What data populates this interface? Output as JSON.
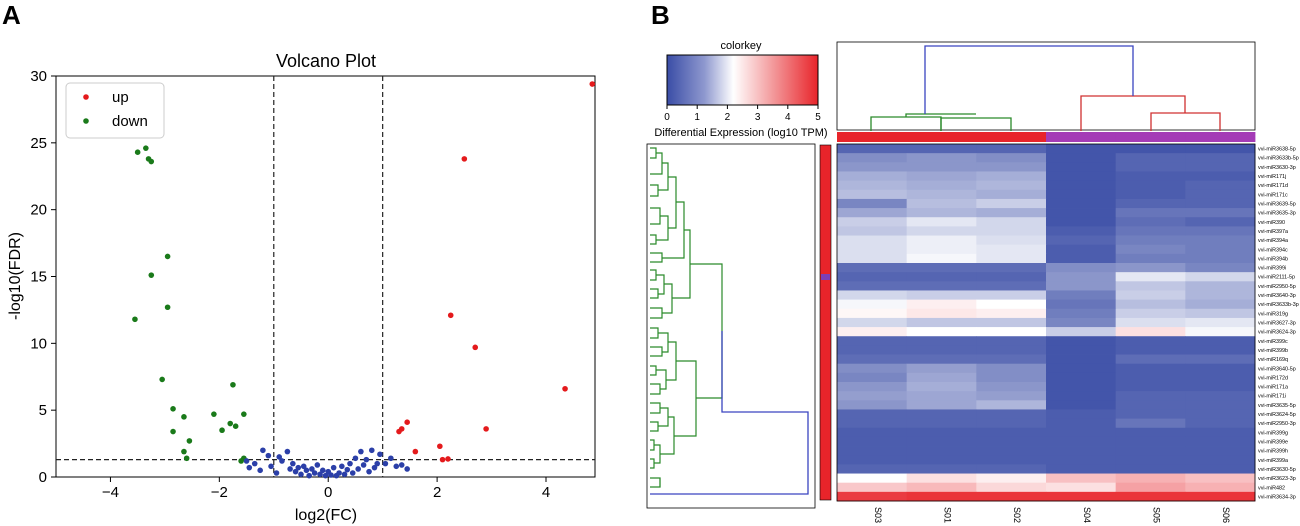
{
  "panels": {
    "a": "A",
    "b": "B"
  },
  "chart_data": [
    {
      "type": "scatter",
      "title": "Volcano Plot",
      "xlabel": "log2(FC)",
      "ylabel": "-log10(FDR)",
      "xlim": [
        -5,
        4.9
      ],
      "ylim": [
        0,
        30
      ],
      "xticks": [
        -4,
        -2,
        0,
        2,
        4
      ],
      "yticks": [
        0,
        5,
        10,
        15,
        20,
        25,
        30
      ],
      "thresholds": {
        "fc": [
          -1,
          1
        ],
        "fdr": 1.3
      },
      "legend": {
        "position": "top-left",
        "entries": [
          "up",
          "down"
        ]
      },
      "colors": {
        "up": "#e41a1c",
        "down": "#1a7a1a",
        "ns": "#2b3fa8"
      },
      "series": [
        {
          "name": "up",
          "points": [
            [
              4.85,
              29.4
            ],
            [
              2.5,
              23.8
            ],
            [
              2.25,
              12.1
            ],
            [
              2.7,
              9.7
            ],
            [
              4.35,
              6.6
            ],
            [
              1.45,
              4.1
            ],
            [
              1.35,
              3.6
            ],
            [
              1.3,
              3.4
            ],
            [
              2.9,
              3.6
            ],
            [
              1.6,
              1.9
            ],
            [
              2.05,
              2.3
            ],
            [
              2.1,
              1.3
            ],
            [
              2.2,
              1.35
            ]
          ]
        },
        {
          "name": "down",
          "points": [
            [
              -3.35,
              24.6
            ],
            [
              -3.5,
              24.3
            ],
            [
              -3.3,
              23.8
            ],
            [
              -3.25,
              23.6
            ],
            [
              -2.95,
              16.5
            ],
            [
              -3.25,
              15.1
            ],
            [
              -2.95,
              12.7
            ],
            [
              -3.55,
              11.8
            ],
            [
              -3.05,
              7.3
            ],
            [
              -2.85,
              5.1
            ],
            [
              -2.65,
              4.5
            ],
            [
              -2.85,
              3.4
            ],
            [
              -2.55,
              2.7
            ],
            [
              -2.65,
              1.9
            ],
            [
              -2.6,
              1.4
            ],
            [
              -2.1,
              4.7
            ],
            [
              -1.75,
              6.9
            ],
            [
              -1.95,
              3.5
            ],
            [
              -1.8,
              4.0
            ],
            [
              -1.55,
              4.7
            ],
            [
              -1.7,
              3.8
            ],
            [
              -1.55,
              1.4
            ],
            [
              -1.6,
              1.2
            ]
          ]
        },
        {
          "name": "ns",
          "points": [
            [
              -1.5,
              1.2
            ],
            [
              -1.35,
              1.0
            ],
            [
              -1.2,
              2.0
            ],
            [
              -1.1,
              1.6
            ],
            [
              -1.05,
              0.8
            ],
            [
              -0.95,
              0.3
            ],
            [
              -0.85,
              1.2
            ],
            [
              -0.75,
              1.9
            ],
            [
              -0.7,
              0.6
            ],
            [
              -0.65,
              1.0
            ],
            [
              -0.6,
              0.4
            ],
            [
              -0.55,
              0.7
            ],
            [
              -0.5,
              0.2
            ],
            [
              -0.45,
              0.8
            ],
            [
              -0.4,
              0.5
            ],
            [
              -0.35,
              0.1
            ],
            [
              -0.3,
              0.6
            ],
            [
              -0.25,
              0.3
            ],
            [
              -0.2,
              0.9
            ],
            [
              -0.15,
              0.2
            ],
            [
              -0.1,
              0.5
            ],
            [
              -0.05,
              0.1
            ],
            [
              0.0,
              0.4
            ],
            [
              0.05,
              0.15
            ],
            [
              0.1,
              0.7
            ],
            [
              0.15,
              0.1
            ],
            [
              0.2,
              0.3
            ],
            [
              0.25,
              0.8
            ],
            [
              0.3,
              0.2
            ],
            [
              0.35,
              0.55
            ],
            [
              0.4,
              1.0
            ],
            [
              0.45,
              0.3
            ],
            [
              0.5,
              1.4
            ],
            [
              0.55,
              0.6
            ],
            [
              0.6,
              1.9
            ],
            [
              0.65,
              0.9
            ],
            [
              0.7,
              1.3
            ],
            [
              0.75,
              0.4
            ],
            [
              0.8,
              2.0
            ],
            [
              0.85,
              0.7
            ],
            [
              0.9,
              1.0
            ],
            [
              0.95,
              1.7
            ],
            [
              1.05,
              1.0
            ],
            [
              1.15,
              1.4
            ],
            [
              1.25,
              0.8
            ],
            [
              1.35,
              0.9
            ],
            [
              1.45,
              0.6
            ],
            [
              -1.25,
              0.5
            ],
            [
              -1.45,
              0.7
            ],
            [
              -0.9,
              1.5
            ]
          ]
        }
      ]
    },
    {
      "type": "heatmap",
      "colorkey": {
        "title": "colorkey",
        "label": "Differential Expression (log10 TPM)",
        "range": [
          0,
          5
        ],
        "ticks": [
          0,
          1,
          2,
          3,
          4,
          5
        ],
        "colors": [
          "#3a4da6",
          "#ffffff",
          "#e8242a"
        ]
      },
      "columns": [
        "S03",
        "S01",
        "S02",
        "S04",
        "S05",
        "S06"
      ],
      "column_groups": [
        "#e8242a",
        "#e8242a",
        "#e8242a",
        "#a43bb6",
        "#a43bb6",
        "#a43bb6"
      ],
      "rows": [
        "vvi-miR3638-5p",
        "vvi-miR3633b-5p",
        "vvi-miR3630-3p",
        "vvi-miR171j",
        "vvi-miR171d",
        "vvi-miR171c",
        "vvi-miR3639-5p",
        "vvi-miR3635-3p",
        "vvi-miR390",
        "vvi-miR397a",
        "vvi-miR394a",
        "vvi-miR394c",
        "vvi-miR394b",
        "vvi-miR399i",
        "vvi-miR2111-5p",
        "vvi-miR2950-5p",
        "vvi-miR3640-3p",
        "vvi-miR3633b-3p",
        "vvi-miR319g",
        "vvi-miR3627-3p",
        "vvi-miR3624-3p",
        "vvi-miR399c",
        "vvi-miR399b",
        "vvi-miR169q",
        "vvi-miR3640-5p",
        "vvi-miR172d",
        "vvi-miR171a",
        "vvi-miR171i",
        "vvi-miR3635-5p",
        "vvi-miR3624-5p",
        "vvi-miR2950-3p",
        "vvi-miR399g",
        "vvi-miR399e",
        "vvi-miR399h",
        "vvi-miR399a",
        "vvi-miR3630-5p",
        "vvi-miR3623-3p",
        "vvi-miR482",
        "vvi-miR3634-3p"
      ],
      "values": [
        [
          0.3,
          0.3,
          0.3,
          0.1,
          0.1,
          0.1
        ],
        [
          0.8,
          0.9,
          0.8,
          0.1,
          0.3,
          0.3
        ],
        [
          0.9,
          0.9,
          0.9,
          0.1,
          0.3,
          0.3
        ],
        [
          1.2,
          1.1,
          1.2,
          0.1,
          0.2,
          0.2
        ],
        [
          1.3,
          1.2,
          1.3,
          0.1,
          0.2,
          0.3
        ],
        [
          1.4,
          1.3,
          1.2,
          0.1,
          0.2,
          0.3
        ],
        [
          0.7,
          1.4,
          1.6,
          0.1,
          0.3,
          0.3
        ],
        [
          1.1,
          1.3,
          1.2,
          0.1,
          0.5,
          0.5
        ],
        [
          1.6,
          1.9,
          1.7,
          0.1,
          0.4,
          0.3
        ],
        [
          1.5,
          1.7,
          1.7,
          0.2,
          0.5,
          0.5
        ],
        [
          1.8,
          2.0,
          1.8,
          0.3,
          0.6,
          0.6
        ],
        [
          1.8,
          2.0,
          1.9,
          0.2,
          0.7,
          0.6
        ],
        [
          1.8,
          2.1,
          1.9,
          0.2,
          0.6,
          0.6
        ],
        [
          0.4,
          0.4,
          0.4,
          0.8,
          0.9,
          0.7
        ],
        [
          0.3,
          0.3,
          0.3,
          0.9,
          1.9,
          1.7
        ],
        [
          0.4,
          0.4,
          0.4,
          0.9,
          1.5,
          1.3
        ],
        [
          1.7,
          1.6,
          1.6,
          0.6,
          1.6,
          1.3
        ],
        [
          2.1,
          2.4,
          2.2,
          0.5,
          1.4,
          1.2
        ],
        [
          2.3,
          2.5,
          2.4,
          0.6,
          1.6,
          1.5
        ],
        [
          1.7,
          1.5,
          1.5,
          0.7,
          1.8,
          1.9
        ],
        [
          2.4,
          2.2,
          2.2,
          1.6,
          2.6,
          2.1
        ],
        [
          0.3,
          0.3,
          0.3,
          0.1,
          0.2,
          0.2
        ],
        [
          0.3,
          0.3,
          0.3,
          0.1,
          0.2,
          0.2
        ],
        [
          0.4,
          0.4,
          0.4,
          0.1,
          0.4,
          0.4
        ],
        [
          0.8,
          1.0,
          0.8,
          0.1,
          0.2,
          0.2
        ],
        [
          0.7,
          1.1,
          0.8,
          0.1,
          0.2,
          0.2
        ],
        [
          0.9,
          1.2,
          0.9,
          0.1,
          0.2,
          0.2
        ],
        [
          1.0,
          1.1,
          1.0,
          0.1,
          0.3,
          0.3
        ],
        [
          0.9,
          1.1,
          1.3,
          0.1,
          0.3,
          0.3
        ],
        [
          0.3,
          0.3,
          0.3,
          0.2,
          0.3,
          0.3
        ],
        [
          0.3,
          0.3,
          0.3,
          0.2,
          0.5,
          0.3
        ],
        [
          0.2,
          0.2,
          0.2,
          0.2,
          0.2,
          0.2
        ],
        [
          0.2,
          0.2,
          0.2,
          0.2,
          0.2,
          0.2
        ],
        [
          0.2,
          0.2,
          0.2,
          0.2,
          0.2,
          0.2
        ],
        [
          0.2,
          0.2,
          0.2,
          0.2,
          0.2,
          0.2
        ],
        [
          0.3,
          0.3,
          0.3,
          0.2,
          0.2,
          0.2
        ],
        [
          2.2,
          2.6,
          2.4,
          3.0,
          3.2,
          3.0
        ],
        [
          2.9,
          3.1,
          2.7,
          2.6,
          3.4,
          3.2
        ],
        [
          4.7,
          4.8,
          4.8,
          4.8,
          4.8,
          4.8
        ]
      ],
      "row_group_color": "#e8242a"
    }
  ]
}
